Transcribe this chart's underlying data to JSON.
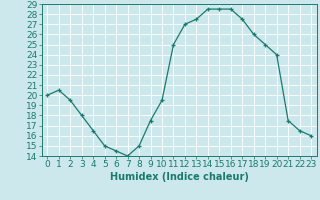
{
  "x": [
    0,
    1,
    2,
    3,
    4,
    5,
    6,
    7,
    8,
    9,
    10,
    11,
    12,
    13,
    14,
    15,
    16,
    17,
    18,
    19,
    20,
    21,
    22,
    23
  ],
  "y": [
    20,
    20.5,
    19.5,
    18,
    16.5,
    15,
    14.5,
    14,
    15,
    17.5,
    19.5,
    25,
    27,
    27.5,
    28.5,
    28.5,
    28.5,
    27.5,
    26,
    25,
    24,
    17.5,
    16.5,
    16
  ],
  "xlabel": "Humidex (Indice chaleur)",
  "line_color": "#1a7a6e",
  "marker": "+",
  "bg_color": "#cce8ec",
  "grid_color": "#ffffff",
  "ylim": [
    14,
    29
  ],
  "xlim": [
    -0.5,
    23.5
  ],
  "yticks": [
    14,
    15,
    16,
    17,
    18,
    19,
    20,
    21,
    22,
    23,
    24,
    25,
    26,
    27,
    28,
    29
  ],
  "xticks": [
    0,
    1,
    2,
    3,
    4,
    5,
    6,
    7,
    8,
    9,
    10,
    11,
    12,
    13,
    14,
    15,
    16,
    17,
    18,
    19,
    20,
    21,
    22,
    23
  ],
  "tick_fontsize": 6.5,
  "xlabel_fontsize": 7
}
